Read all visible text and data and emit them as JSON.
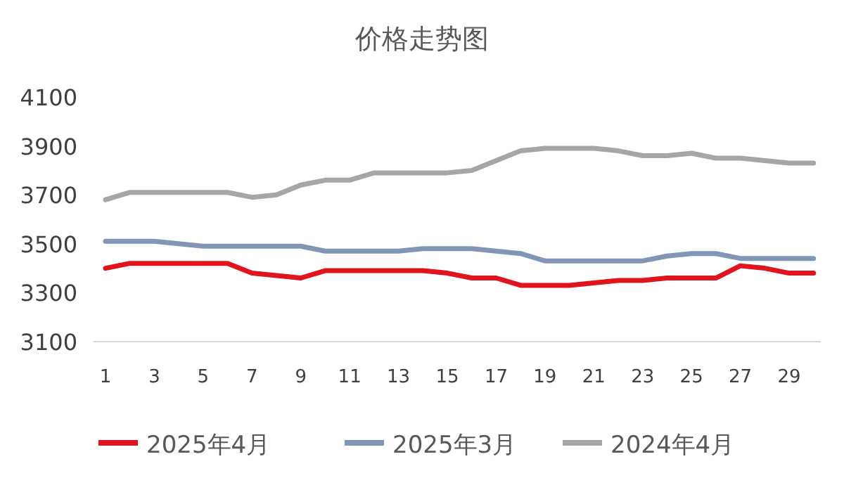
{
  "chart_data": {
    "type": "line",
    "title": "价格走势图",
    "x": [
      1,
      2,
      3,
      4,
      5,
      6,
      7,
      8,
      9,
      10,
      11,
      12,
      13,
      14,
      15,
      16,
      17,
      18,
      19,
      20,
      21,
      22,
      23,
      24,
      25,
      26,
      27,
      28,
      29,
      30
    ],
    "xlim": [
      0.5,
      30.3
    ],
    "xticks": [
      1,
      3,
      5,
      7,
      9,
      11,
      13,
      15,
      17,
      19,
      21,
      23,
      25,
      27,
      29
    ],
    "ylim": [
      3100,
      4100
    ],
    "yticks": [
      3100,
      3300,
      3500,
      3700,
      3900,
      4100
    ],
    "grid": false,
    "legend": "bottom",
    "marker": "none",
    "line_style": "solid",
    "series": [
      {
        "name": "2025年4月",
        "color": "#e0141c",
        "values": [
          3400,
          3420,
          3420,
          3420,
          3420,
          3420,
          3380,
          3370,
          3360,
          3390,
          3390,
          3390,
          3390,
          3390,
          3380,
          3360,
          3360,
          3330,
          3330,
          3330,
          3340,
          3350,
          3350,
          3360,
          3360,
          3360,
          3410,
          3400,
          3380,
          3380
        ]
      },
      {
        "name": "2025年3月",
        "color": "#8096b4",
        "values": [
          3510,
          3510,
          3510,
          3500,
          3490,
          3490,
          3490,
          3490,
          3490,
          3470,
          3470,
          3470,
          3470,
          3480,
          3480,
          3480,
          3470,
          3460,
          3430,
          3430,
          3430,
          3430,
          3430,
          3450,
          3460,
          3460,
          3440,
          3440,
          3440,
          3440
        ]
      },
      {
        "name": "2024年4月",
        "color": "#a6a6a6",
        "values": [
          3680,
          3710,
          3710,
          3710,
          3710,
          3710,
          3690,
          3700,
          3740,
          3760,
          3760,
          3790,
          3790,
          3790,
          3790,
          3800,
          3840,
          3880,
          3890,
          3890,
          3890,
          3880,
          3860,
          3860,
          3870,
          3850,
          3850,
          3840,
          3830,
          3830
        ]
      }
    ]
  }
}
